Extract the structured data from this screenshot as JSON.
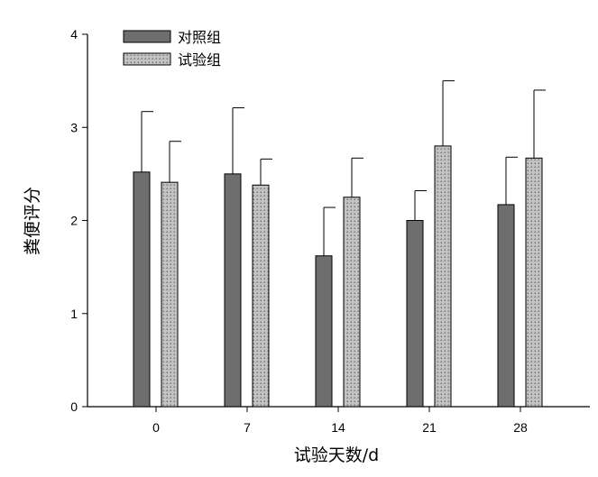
{
  "chart_data": {
    "type": "bar",
    "xlabel": "试验天数/d",
    "ylabel": "粪便评分",
    "categories": [
      "0",
      "7",
      "14",
      "21",
      "28"
    ],
    "yticks": [
      "0",
      "1",
      "2",
      "3",
      "4"
    ],
    "ylim": [
      0,
      4
    ],
    "grid": false,
    "legend_position": "top-left",
    "series": [
      {
        "name": "对照组",
        "values": [
          2.52,
          2.5,
          1.62,
          2.0,
          2.17
        ],
        "error": [
          0.65,
          0.71,
          0.52,
          0.32,
          0.51
        ],
        "fill": "#6e6e6e",
        "pattern": "solid"
      },
      {
        "name": "试验组",
        "values": [
          2.41,
          2.38,
          2.25,
          2.8,
          2.67
        ],
        "error": [
          0.44,
          0.28,
          0.42,
          0.7,
          0.73
        ],
        "fill": "#bdbdbd",
        "pattern": "dotted"
      }
    ]
  }
}
